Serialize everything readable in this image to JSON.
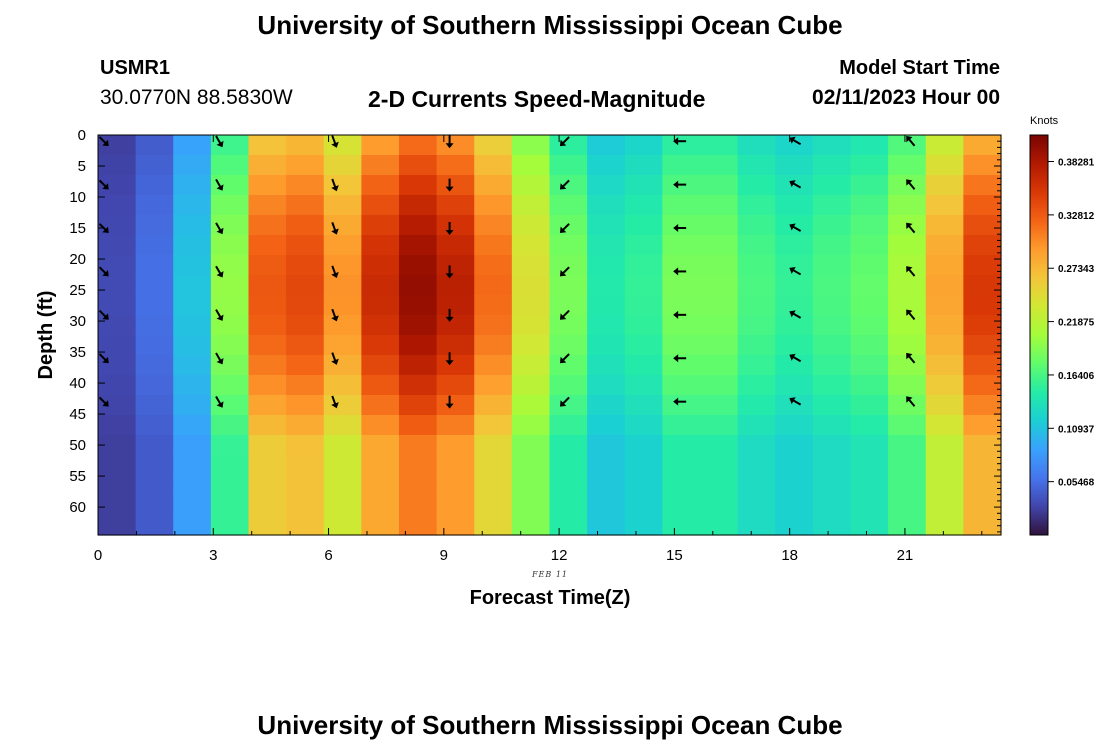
{
  "header": {
    "title": "University of Southern Mississippi Ocean Cube",
    "station": "USMR1",
    "coords": "30.0770N  88.5830W",
    "subtitle": "2-D Currents Speed-Magnitude",
    "model_start_label": "Model Start Time",
    "model_start_value": "02/11/2023 Hour 00"
  },
  "footer": {
    "title": "University of Southern Mississippi Ocean Cube"
  },
  "colors": {
    "colormap": [
      "#30123b",
      "#4145ab",
      "#4675ed",
      "#39a2fc",
      "#1bcfd4",
      "#24eca6",
      "#61fc6c",
      "#a4fc3b",
      "#d1e834",
      "#f3c63a",
      "#fe9b2d",
      "#f36315",
      "#d93806",
      "#b11901",
      "#7a0402"
    ]
  },
  "chart_data": {
    "type": "heatmap",
    "title": "2-D Currents Speed-Magnitude",
    "xlabel": "Forecast Time(Z)",
    "ylabel": "Depth (ft)",
    "date_label": "FEB 11",
    "xlim": [
      0,
      23.5
    ],
    "ylim": [
      0,
      64.5
    ],
    "x_ticks": [
      0,
      3,
      6,
      9,
      12,
      15,
      18,
      21
    ],
    "y_ticks": [
      0,
      5,
      10,
      15,
      20,
      25,
      30,
      35,
      40,
      45,
      50,
      55,
      60
    ],
    "colorbar": {
      "label": "Knots",
      "min": 0,
      "max": 0.41,
      "ticks": [
        "0.38281",
        "0.32812",
        "0.27343",
        "0.21875",
        "0.16406",
        "0.10937",
        "0.05468"
      ],
      "tick_values": [
        0.38281,
        0.32812,
        0.27343,
        0.21875,
        0.16406,
        0.10937,
        0.05468
      ]
    },
    "speed_profiles": [
      {
        "hour": 0,
        "speed": 0.03
      },
      {
        "hour": 1,
        "speed": 0.05
      },
      {
        "hour": 2,
        "speed": 0.1
      },
      {
        "hour": 3,
        "speed": 0.18
      },
      {
        "hour": 4,
        "speed": 0.3
      },
      {
        "hour": 5,
        "speed": 0.31
      },
      {
        "hour": 6,
        "speed": 0.27
      },
      {
        "hour": 7,
        "speed": 0.33
      },
      {
        "hour": 8,
        "speed": 0.36
      },
      {
        "hour": 9,
        "speed": 0.34
      },
      {
        "hour": 10,
        "speed": 0.29
      },
      {
        "hour": 11,
        "speed": 0.22
      },
      {
        "hour": 12,
        "speed": 0.17
      },
      {
        "hour": 13,
        "speed": 0.13
      },
      {
        "hour": 14,
        "speed": 0.14
      },
      {
        "hour": 15,
        "speed": 0.17
      },
      {
        "hour": 16,
        "speed": 0.17
      },
      {
        "hour": 17,
        "speed": 0.15
      },
      {
        "hour": 18,
        "speed": 0.14
      },
      {
        "hour": 19,
        "speed": 0.15
      },
      {
        "hour": 20,
        "speed": 0.16
      },
      {
        "hour": 21,
        "speed": 0.19
      },
      {
        "hour": 22,
        "speed": 0.26
      },
      {
        "hour": 23,
        "speed": 0.32
      }
    ],
    "vector_depths_ft": [
      1,
      8,
      15,
      22,
      29,
      36,
      43
    ],
    "vectors": [
      {
        "hour": 0,
        "dir_deg": 135
      },
      {
        "hour": 3,
        "dir_deg": 150
      },
      {
        "hour": 6,
        "dir_deg": 160
      },
      {
        "hour": 9,
        "dir_deg": 180
      },
      {
        "hour": 12,
        "dir_deg": 225
      },
      {
        "hour": 15,
        "dir_deg": 270
      },
      {
        "hour": 18,
        "dir_deg": 300
      },
      {
        "hour": 21,
        "dir_deg": 320
      }
    ]
  }
}
